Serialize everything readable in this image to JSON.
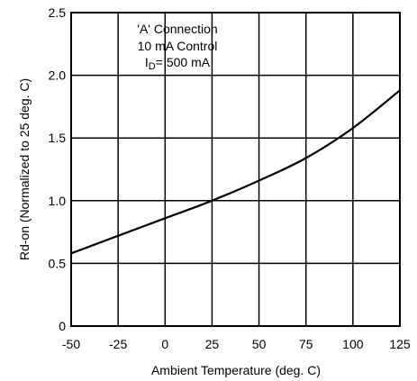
{
  "chart_data": {
    "type": "line",
    "xlabel": "Ambient Temperature (deg. C)",
    "ylabel": "Rd-on (Normalized to 25 deg. C)",
    "xlim": [
      -50,
      125
    ],
    "ylim": [
      0,
      2.5
    ],
    "x_ticks": [
      -50,
      -25,
      0,
      25,
      50,
      75,
      100,
      125
    ],
    "x_tick_labels": [
      "-50",
      "-25",
      "0",
      "25",
      "50",
      "75",
      "100",
      "125"
    ],
    "y_ticks": [
      0,
      0.5,
      1.0,
      1.5,
      2.0,
      2.5
    ],
    "y_tick_labels": [
      "0",
      "0.5",
      "1.0",
      "1.5",
      "2.0",
      "2.5"
    ],
    "grid": true,
    "annotation": {
      "line1": "'A' Connection",
      "line2": "10 mA Control",
      "line3_main": "I",
      "line3_sub": "D",
      "line3_rest": "= 500 mA"
    },
    "series": [
      {
        "x": [
          -50,
          -25,
          0,
          25,
          50,
          75,
          100,
          125
        ],
        "y": [
          0.58,
          0.72,
          0.86,
          1.0,
          1.16,
          1.34,
          1.58,
          1.88
        ]
      }
    ]
  },
  "colors": {
    "line": "#000000",
    "grid": "#000000",
    "background": "#ffffff"
  }
}
